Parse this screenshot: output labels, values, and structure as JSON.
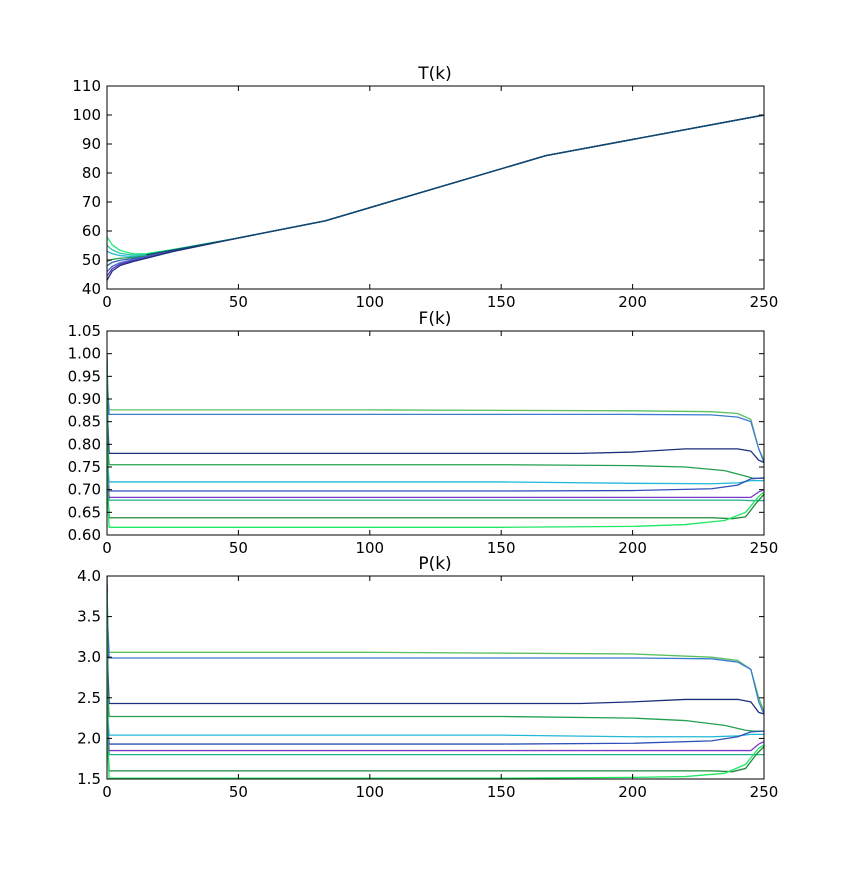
{
  "chart_data": [
    {
      "type": "line",
      "title": "T(k)",
      "xlim": [
        0,
        250
      ],
      "ylim": [
        40,
        110
      ],
      "xticks": [
        0,
        50,
        100,
        150,
        200,
        250
      ],
      "yticks": [
        40,
        50,
        60,
        70,
        80,
        90,
        100,
        110
      ],
      "xtick_labels": [
        "0",
        "50",
        "100",
        "150",
        "200",
        "250"
      ],
      "ytick_labels": [
        "40",
        "50",
        "60",
        "70",
        "80",
        "90",
        "100",
        "110"
      ],
      "grid": false,
      "series": [
        {
          "color": "#1aee7a",
          "x": [
            0,
            2,
            5,
            10,
            15,
            25,
            50,
            83,
            167,
            250
          ],
          "y": [
            58,
            55.2,
            53.3,
            52.1,
            52.2,
            53.6,
            57.6,
            63.5,
            86,
            100
          ]
        },
        {
          "color": "#2ec8a0",
          "x": [
            0,
            2,
            5,
            10,
            15,
            25,
            50,
            83,
            167,
            250
          ],
          "y": [
            55,
            53.5,
            52.3,
            51.7,
            51.9,
            53.5,
            57.6,
            63.5,
            86,
            100
          ]
        },
        {
          "color": "#1fb8d8",
          "x": [
            0,
            2,
            5,
            10,
            15,
            25,
            50,
            83,
            167,
            250
          ],
          "y": [
            53,
            52.2,
            51.5,
            51.2,
            51.6,
            53.4,
            57.6,
            63.5,
            86,
            100
          ]
        },
        {
          "color": "#22a055",
          "x": [
            0,
            2,
            5,
            10,
            15,
            25,
            50,
            83,
            167,
            250
          ],
          "y": [
            49.5,
            50.2,
            50.6,
            50.9,
            51.4,
            53.3,
            57.6,
            63.5,
            86,
            100
          ]
        },
        {
          "color": "#3a5fb0",
          "x": [
            0,
            2,
            5,
            10,
            15,
            25,
            50,
            83,
            167,
            250
          ],
          "y": [
            48,
            49.2,
            49.9,
            50.5,
            51.2,
            53.2,
            57.6,
            63.5,
            86,
            100
          ]
        },
        {
          "color": "#3d6fd0",
          "x": [
            0,
            2,
            5,
            10,
            15,
            25,
            50,
            83,
            167,
            250
          ],
          "y": [
            46,
            47.8,
            49.1,
            50.1,
            51,
            53.1,
            57.6,
            63.5,
            86,
            100
          ]
        },
        {
          "color": "#6a2fc0",
          "x": [
            0,
            2,
            5,
            10,
            15,
            25,
            50,
            83,
            167,
            250
          ],
          "y": [
            44.5,
            47,
            48.6,
            49.8,
            50.8,
            53,
            57.6,
            63.5,
            86,
            100
          ]
        },
        {
          "color": "#1b2f7a",
          "x": [
            0,
            2,
            5,
            10,
            15,
            25,
            50,
            83,
            167,
            250
          ],
          "y": [
            43,
            46.2,
            48.1,
            49.5,
            50.6,
            52.9,
            57.6,
            63.5,
            86,
            100
          ]
        },
        {
          "color": "#0f4a6a",
          "x": [
            15,
            25,
            50,
            83,
            167,
            250
          ],
          "y": [
            51.8,
            53.4,
            57.6,
            63.5,
            86,
            100
          ]
        }
      ]
    },
    {
      "type": "line",
      "title": "F(k)",
      "xlim": [
        0,
        250
      ],
      "ylim": [
        0.6,
        1.05
      ],
      "xticks": [
        0,
        50,
        100,
        150,
        200,
        250
      ],
      "yticks": [
        0.6,
        0.65,
        0.7,
        0.75,
        0.8,
        0.85,
        0.9,
        0.95,
        1.0,
        1.05
      ],
      "xtick_labels": [
        "0",
        "50",
        "100",
        "150",
        "200",
        "250"
      ],
      "ytick_labels": [
        "0.60",
        "0.65",
        "0.70",
        "0.75",
        "0.80",
        "0.85",
        "0.90",
        "0.95",
        "1.00",
        "1.05"
      ],
      "grid": false,
      "series": [
        {
          "color": "#5cc060",
          "x": [
            0,
            0.3,
            0.8,
            1,
            100,
            200,
            230,
            240,
            245,
            248,
            250
          ],
          "y": [
            0.98,
            0.92,
            0.877,
            0.876,
            0.876,
            0.874,
            0.872,
            0.868,
            0.855,
            0.79,
            0.765
          ]
        },
        {
          "color": "#3d7ad0",
          "x": [
            0,
            0.3,
            0.8,
            1,
            100,
            200,
            230,
            240,
            245,
            248,
            250
          ],
          "y": [
            0.98,
            0.91,
            0.866,
            0.866,
            0.866,
            0.866,
            0.865,
            0.86,
            0.85,
            0.79,
            0.76
          ]
        },
        {
          "color": "#1b2f7a",
          "x": [
            0,
            0.3,
            0.8,
            1,
            150,
            180,
            200,
            220,
            240,
            245,
            248,
            250
          ],
          "y": [
            1.0,
            0.85,
            0.78,
            0.78,
            0.78,
            0.78,
            0.783,
            0.79,
            0.79,
            0.785,
            0.765,
            0.76
          ]
        },
        {
          "color": "#22a050",
          "x": [
            0,
            0.3,
            0.8,
            1,
            150,
            200,
            220,
            235,
            243,
            246,
            250
          ],
          "y": [
            0.98,
            0.8,
            0.755,
            0.755,
            0.755,
            0.753,
            0.75,
            0.742,
            0.73,
            0.725,
            0.725
          ]
        },
        {
          "color": "#22b8d8",
          "x": [
            0,
            0.3,
            0.8,
            1,
            150,
            200,
            230,
            240,
            245,
            250
          ],
          "y": [
            0.98,
            0.76,
            0.717,
            0.717,
            0.717,
            0.714,
            0.713,
            0.715,
            0.72,
            0.72
          ]
        },
        {
          "color": "#2e50b8",
          "x": [
            0,
            0.3,
            0.8,
            1,
            150,
            200,
            230,
            240,
            245,
            250
          ],
          "y": [
            0.98,
            0.74,
            0.697,
            0.697,
            0.697,
            0.698,
            0.702,
            0.71,
            0.724,
            0.726
          ]
        },
        {
          "color": "#1fb090",
          "x": [
            0,
            0.3,
            0.8,
            1,
            150,
            200,
            230,
            240,
            245,
            250
          ],
          "y": [
            0.98,
            0.73,
            0.677,
            0.677,
            0.677,
            0.677,
            0.677,
            0.677,
            0.676,
            0.676
          ]
        },
        {
          "color": "#7a3ac8",
          "x": [
            0,
            0.3,
            0.8,
            1,
            150,
            200,
            230,
            240,
            245,
            248,
            250
          ],
          "y": [
            0.98,
            0.73,
            0.683,
            0.683,
            0.683,
            0.683,
            0.683,
            0.683,
            0.683,
            0.695,
            0.7
          ]
        },
        {
          "color": "#1e8a3a",
          "x": [
            0,
            0.3,
            0.8,
            1,
            150,
            200,
            230,
            238,
            243,
            247,
            250
          ],
          "y": [
            0.98,
            0.7,
            0.638,
            0.638,
            0.638,
            0.638,
            0.638,
            0.636,
            0.64,
            0.67,
            0.69
          ]
        },
        {
          "color": "#1ee864",
          "x": [
            0,
            0.3,
            0.8,
            1,
            150,
            200,
            220,
            235,
            243,
            248,
            250
          ],
          "y": [
            0.98,
            0.68,
            0.617,
            0.617,
            0.617,
            0.619,
            0.623,
            0.632,
            0.65,
            0.685,
            0.695
          ]
        }
      ]
    },
    {
      "type": "line",
      "title": "P(k)",
      "xlim": [
        0,
        250
      ],
      "ylim": [
        1.5,
        4.0
      ],
      "xticks": [
        0,
        50,
        100,
        150,
        200,
        250
      ],
      "yticks": [
        1.5,
        2.0,
        2.5,
        3.0,
        3.5,
        4.0
      ],
      "xtick_labels": [
        "0",
        "50",
        "100",
        "150",
        "200",
        "250"
      ],
      "ytick_labels": [
        "1.5",
        "2.0",
        "2.5",
        "3.0",
        "3.5",
        "4.0"
      ],
      "grid": false,
      "series": [
        {
          "color": "#5cc060",
          "x": [
            0,
            0.3,
            0.8,
            1,
            100,
            200,
            230,
            240,
            245,
            248,
            250
          ],
          "y": [
            3.9,
            3.4,
            3.06,
            3.06,
            3.06,
            3.04,
            3.0,
            2.96,
            2.85,
            2.5,
            2.33
          ]
        },
        {
          "color": "#3d7ad0",
          "x": [
            0,
            0.3,
            0.8,
            1,
            100,
            200,
            230,
            240,
            245,
            248,
            250
          ],
          "y": [
            3.9,
            3.35,
            2.99,
            2.99,
            2.99,
            2.99,
            2.98,
            2.94,
            2.85,
            2.45,
            2.3
          ]
        },
        {
          "color": "#1b2f7a",
          "x": [
            0,
            0.3,
            0.8,
            1,
            150,
            180,
            200,
            220,
            240,
            245,
            248,
            250
          ],
          "y": [
            4.0,
            2.9,
            2.43,
            2.43,
            2.43,
            2.43,
            2.45,
            2.48,
            2.48,
            2.45,
            2.32,
            2.3
          ]
        },
        {
          "color": "#22a050",
          "x": [
            0,
            0.3,
            0.8,
            1,
            150,
            200,
            220,
            235,
            243,
            246,
            250
          ],
          "y": [
            3.8,
            2.6,
            2.27,
            2.27,
            2.27,
            2.25,
            2.22,
            2.16,
            2.1,
            2.09,
            2.09
          ]
        },
        {
          "color": "#22b8d8",
          "x": [
            0,
            0.3,
            0.8,
            1,
            150,
            200,
            230,
            240,
            245,
            250
          ],
          "y": [
            3.8,
            2.3,
            2.04,
            2.04,
            2.04,
            2.02,
            2.02,
            2.03,
            2.05,
            2.05
          ]
        },
        {
          "color": "#2e50b8",
          "x": [
            0,
            0.3,
            0.8,
            1,
            150,
            200,
            230,
            240,
            245,
            250
          ],
          "y": [
            3.8,
            2.2,
            1.93,
            1.93,
            1.93,
            1.94,
            1.97,
            2.02,
            2.08,
            2.09
          ]
        },
        {
          "color": "#1fb090",
          "x": [
            0,
            0.3,
            0.8,
            1,
            150,
            200,
            230,
            240,
            245,
            250
          ],
          "y": [
            3.8,
            2.1,
            1.8,
            1.8,
            1.8,
            1.8,
            1.8,
            1.8,
            1.8,
            1.8
          ]
        },
        {
          "color": "#7a3ac8",
          "x": [
            0,
            0.3,
            0.8,
            1,
            150,
            200,
            230,
            240,
            245,
            248,
            250
          ],
          "y": [
            3.8,
            2.1,
            1.85,
            1.85,
            1.85,
            1.85,
            1.85,
            1.85,
            1.85,
            1.93,
            1.96
          ]
        },
        {
          "color": "#1e8a3a",
          "x": [
            0,
            0.3,
            0.8,
            1,
            150,
            200,
            230,
            238,
            243,
            247,
            250
          ],
          "y": [
            3.8,
            1.95,
            1.6,
            1.6,
            1.6,
            1.6,
            1.6,
            1.59,
            1.63,
            1.8,
            1.9
          ]
        },
        {
          "color": "#1ee864",
          "x": [
            0,
            0.3,
            0.8,
            1,
            150,
            200,
            220,
            235,
            243,
            248,
            250
          ],
          "y": [
            3.8,
            1.85,
            1.51,
            1.51,
            1.51,
            1.52,
            1.53,
            1.57,
            1.68,
            1.88,
            1.92
          ]
        }
      ]
    }
  ]
}
